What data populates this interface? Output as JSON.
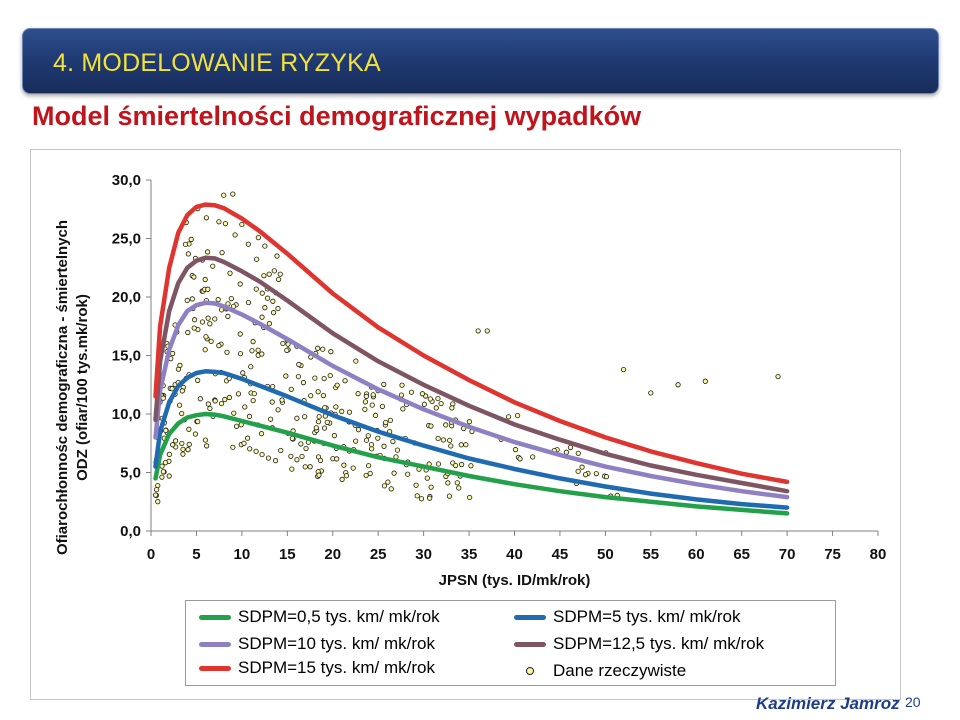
{
  "header": {
    "title": "4. MODELOWANIE RYZYKA",
    "subtitle": "Model śmiertelności demograficznej wypadków"
  },
  "footer": {
    "author": "Kazimierz Jamroz",
    "page_number": "20"
  },
  "chart_data": {
    "type": "line",
    "xlabel": "JPSN (tys. ID/mk/rok)",
    "ylabel_line1": "Ofiarochłonnośc demograficzna - śmiertelnych",
    "ylabel_line2": "ODZ (ofiar/100 tys.mk/rok)",
    "xlim": [
      0,
      80
    ],
    "ylim": [
      0,
      30
    ],
    "x_ticks": [
      "0",
      "5",
      "10",
      "15",
      "20",
      "25",
      "30",
      "35",
      "40",
      "45",
      "50",
      "55",
      "60",
      "65",
      "70",
      "75",
      "80"
    ],
    "y_ticks": [
      "0,0",
      "5,0",
      "10,0",
      "15,0",
      "20,0",
      "25,0",
      "30,0"
    ],
    "x": [
      0.5,
      1,
      2,
      3,
      4,
      5,
      6,
      7,
      8,
      10,
      12,
      15,
      20,
      25,
      30,
      35,
      40,
      45,
      50,
      55,
      60,
      65,
      70
    ],
    "series": [
      {
        "name": "SDPM=0,5 tys. km/ mk/rok",
        "color": "#22a04a",
        "values": [
          4.5,
          6.5,
          8.3,
          9.2,
          9.7,
          9.9,
          10.0,
          9.95,
          9.8,
          9.4,
          9.0,
          8.4,
          7.3,
          6.3,
          5.5,
          4.7,
          4.0,
          3.4,
          2.9,
          2.5,
          2.1,
          1.8,
          1.5
        ]
      },
      {
        "name": "SDPM=5 tys. km/ mk/rok",
        "color": "#1f6ab0",
        "values": [
          5.5,
          8.5,
          11.0,
          12.4,
          13.1,
          13.5,
          13.65,
          13.6,
          13.5,
          13.0,
          12.4,
          11.5,
          9.9,
          8.5,
          7.3,
          6.2,
          5.3,
          4.5,
          3.8,
          3.2,
          2.7,
          2.3,
          2.0
        ]
      },
      {
        "name": "SDPM=10 tys. km/ mk/rok",
        "color": "#8f80c4",
        "values": [
          8.0,
          12.0,
          15.5,
          17.6,
          18.8,
          19.3,
          19.5,
          19.45,
          19.2,
          18.5,
          17.7,
          16.4,
          14.1,
          12.1,
          10.4,
          8.9,
          7.6,
          6.5,
          5.5,
          4.7,
          4.0,
          3.4,
          2.9
        ]
      },
      {
        "name": "SDPM=12,5 tys. km/ mk/rok",
        "color": "#7e5563",
        "values": [
          9.5,
          14.5,
          18.8,
          21.2,
          22.5,
          23.1,
          23.35,
          23.3,
          23.0,
          22.2,
          21.3,
          19.7,
          16.9,
          14.5,
          12.5,
          10.7,
          9.1,
          7.8,
          6.6,
          5.6,
          4.8,
          4.1,
          3.4
        ]
      },
      {
        "name": "SDPM=15 tys. km/ mk/rok",
        "color": "#e0342e",
        "values": [
          11.5,
          17.5,
          22.5,
          25.5,
          27.0,
          27.7,
          27.9,
          27.85,
          27.6,
          26.7,
          25.6,
          23.7,
          20.3,
          17.4,
          15.0,
          12.9,
          11.0,
          9.4,
          8.0,
          6.8,
          5.8,
          4.9,
          4.2
        ]
      },
      {
        "name": "Dane rzeczywiste",
        "type": "scatter",
        "color": "#fbf7a6"
      }
    ]
  }
}
